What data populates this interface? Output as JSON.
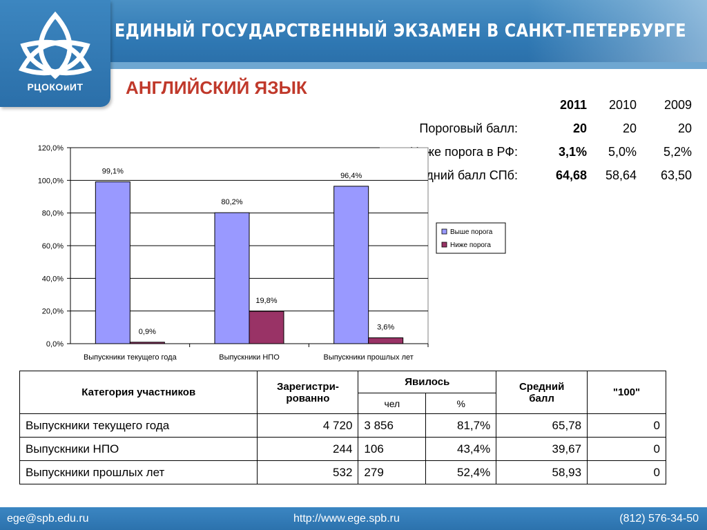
{
  "header": {
    "title": "ЕДИНЫЙ ГОСУДАРСТВЕННЫЙ ЭКЗАМЕН В САНКТ-ПЕТЕРБУРГЕ",
    "logo_text": "РЦОКОиИТ"
  },
  "subject": "АНГЛИЙСКИЙ ЯЗЫК",
  "summary": {
    "years": [
      "2011",
      "2010",
      "2009"
    ],
    "rows": [
      {
        "label": "Пороговый балл:",
        "values": [
          "20",
          "20",
          "20"
        ]
      },
      {
        "label": "Ниже порога в РФ:",
        "values": [
          "3,1%",
          "5,0%",
          "5,2%"
        ]
      },
      {
        "label": "Средний балл СПб:",
        "values": [
          "64,68",
          "58,64",
          "63,50"
        ]
      }
    ]
  },
  "chart_data": {
    "type": "bar",
    "categories": [
      "Выпускники текущего года",
      "Выпускники НПО",
      "Выпускники прошлых лет"
    ],
    "series": [
      {
        "name": "Выше порога",
        "values": [
          99.1,
          80.2,
          96.4
        ],
        "labels": [
          "99,1%",
          "80,2%",
          "96,4%"
        ],
        "color": "#9999ff"
      },
      {
        "name": "Ниже порога",
        "values": [
          0.9,
          19.8,
          3.6
        ],
        "labels": [
          "0,9%",
          "19,8%",
          "3,6%"
        ],
        "color": "#993366"
      }
    ],
    "yticks": [
      "0,0%",
      "20,0%",
      "40,0%",
      "60,0%",
      "80,0%",
      "100,0%",
      "120,0%"
    ],
    "ylim": [
      0,
      120
    ],
    "legend_position": "right",
    "grid": true
  },
  "table": {
    "headers": {
      "category": "Категория участников",
      "registered": "Зарегистри-рованно",
      "appeared": "Явилось",
      "people": "чел",
      "percent": "%",
      "avg": "Средний балл",
      "hundred": "\"100\""
    },
    "rows": [
      {
        "category": "Выпускники текущего года",
        "registered": "4 720",
        "people": "3 856",
        "percent": "81,7%",
        "avg": "65,78",
        "hundred": "0"
      },
      {
        "category": "Выпускники НПО",
        "registered": "244",
        "people": "106",
        "percent": "43,4%",
        "avg": "39,67",
        "hundred": "0"
      },
      {
        "category": "Выпускники прошлых лет",
        "registered": "532",
        "people": "279",
        "percent": "52,4%",
        "avg": "58,93",
        "hundred": "0"
      }
    ]
  },
  "footer": {
    "email": "ege@spb.edu.ru",
    "url": "http://www.ege.spb.ru",
    "phone": "(812) 576-34-50"
  }
}
